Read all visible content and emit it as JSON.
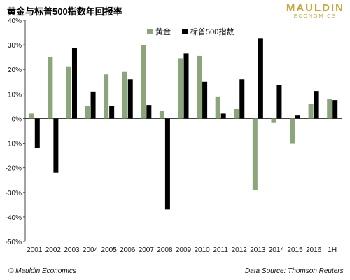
{
  "chart_data": {
    "type": "bar",
    "title": "黄金与标普500指数年回报率",
    "categories": [
      "2001",
      "2002",
      "2003",
      "2004",
      "2005",
      "2006",
      "2007",
      "2008",
      "2009",
      "2010",
      "2011",
      "2012",
      "2013",
      "2014",
      "2015",
      "2016",
      "1H"
    ],
    "series": [
      {
        "name": "黄金",
        "color": "#8aa67a",
        "values": [
          2,
          25,
          21,
          5,
          18,
          19,
          30,
          3,
          24.5,
          25.5,
          9,
          4,
          -29,
          -1.5,
          -10,
          6,
          8
        ]
      },
      {
        "name": "标普500指数",
        "color": "#000000",
        "values": [
          -12,
          -22,
          28.8,
          11,
          5,
          16,
          5.5,
          -37,
          26.5,
          15,
          2,
          16,
          32.5,
          13.7,
          1.5,
          11.2,
          7.5
        ]
      }
    ],
    "yTicks": [
      "40%",
      "30%",
      "20%",
      "10%",
      "0%",
      "-10%",
      "-20%",
      "-30%",
      "-40%",
      "-50%"
    ],
    "ylim": [
      -50,
      40
    ],
    "grid": false,
    "legend_position": "top-center"
  },
  "logo": {
    "line1": "MAULDIN",
    "line2": "ECONOMICS"
  },
  "footer": {
    "left": "© Mauldin Economics",
    "right": "Data Source: Thomson Reuters"
  }
}
